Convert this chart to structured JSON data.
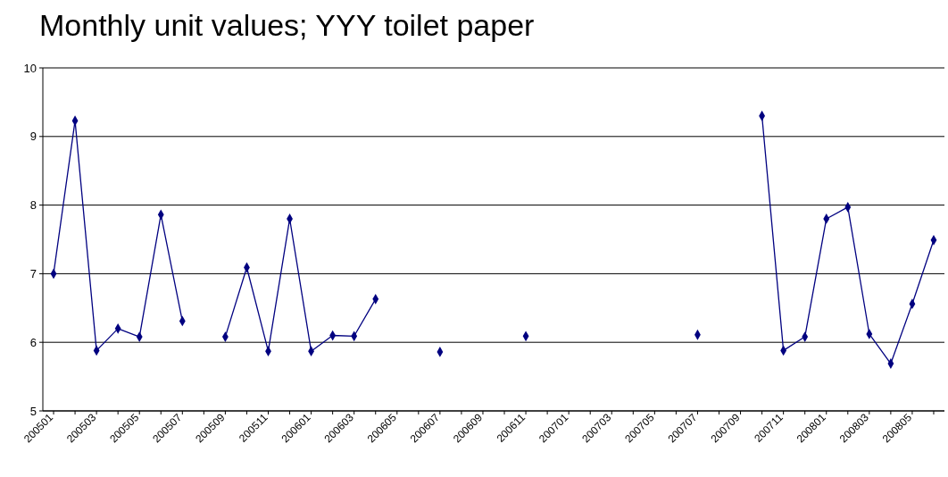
{
  "chart_data": {
    "type": "line",
    "title": "Monthly unit values; YYY toilet paper",
    "categories": [
      "200501",
      null,
      "200503",
      null,
      "200505",
      null,
      "200507",
      null,
      "200509",
      null,
      "200511",
      null,
      "200601",
      null,
      "200603",
      null,
      "200605",
      null,
      "200607",
      null,
      "200609",
      null,
      "200611",
      null,
      "200701",
      null,
      "200703",
      null,
      "200705",
      null,
      "200707",
      null,
      "200709",
      null,
      "200711",
      null,
      "200801",
      null,
      "200803",
      null,
      "200805",
      null
    ],
    "series": [
      {
        "color": "#000080",
        "values": [
          7.0,
          9.23,
          5.88,
          6.2,
          6.08,
          7.86,
          6.31,
          null,
          6.08,
          7.09,
          5.87,
          7.8,
          5.87,
          6.1,
          6.09,
          6.63,
          null,
          null,
          5.86,
          null,
          null,
          null,
          6.09,
          null,
          null,
          null,
          null,
          null,
          null,
          null,
          6.11,
          null,
          null,
          9.3,
          5.88,
          6.08,
          7.8,
          7.97,
          6.12,
          5.69,
          6.56,
          7.49
        ]
      }
    ],
    "ylim": [
      5,
      10
    ],
    "yticks": [
      5,
      6,
      7,
      8,
      9,
      10
    ],
    "grid": "y",
    "marker": "diamond",
    "line_style": "solid"
  }
}
